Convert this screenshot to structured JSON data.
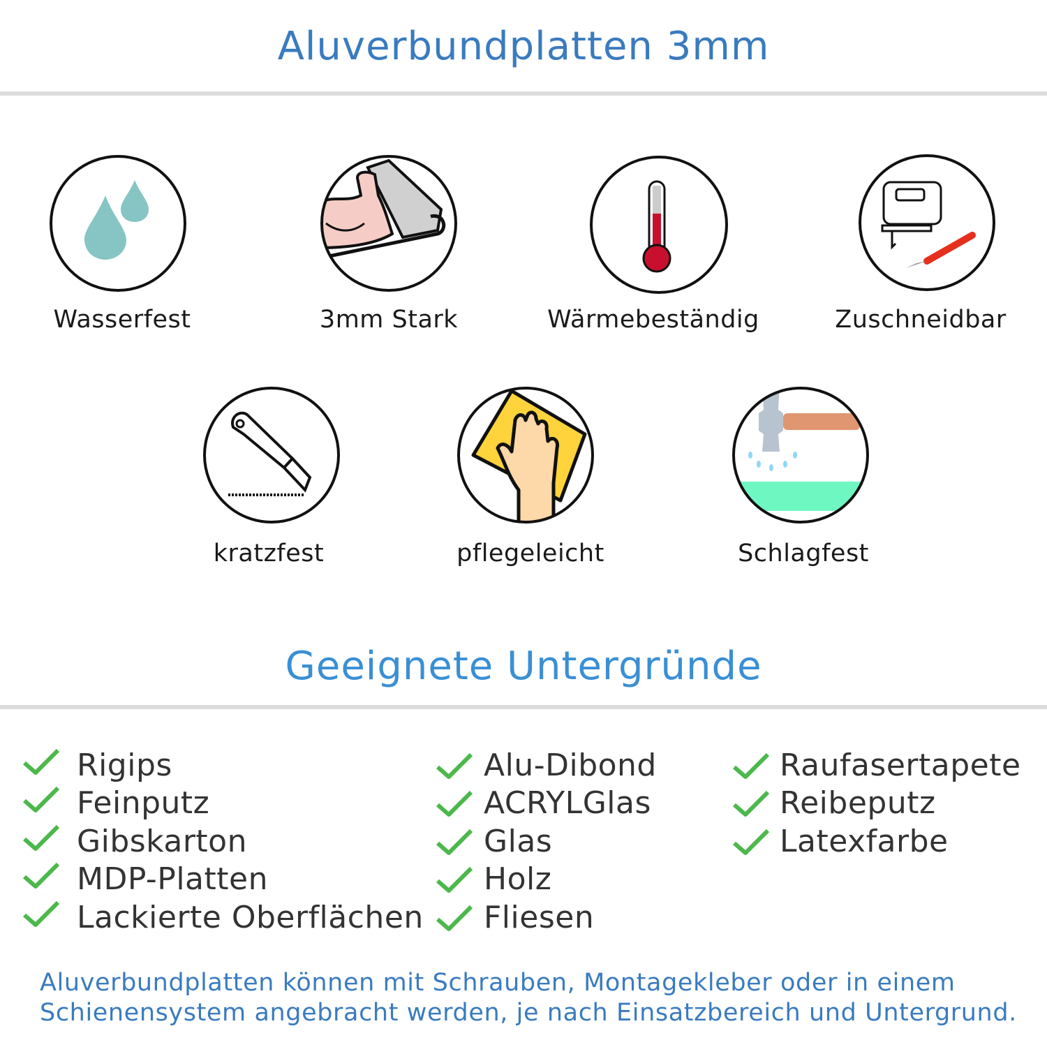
{
  "header": {
    "title": "Aluverbundplatten 3mm",
    "title_color": "#3a7bbf"
  },
  "features": [
    {
      "label": "Wasserfest",
      "icon": "water-drops-icon"
    },
    {
      "label": "3mm Stark",
      "icon": "strong-arm-icon"
    },
    {
      "label": "Wärmebeständig",
      "icon": "thermometer-icon"
    },
    {
      "label": "Zuschneidbar",
      "icon": "jigsaw-knife-icon"
    },
    {
      "label": "kratzfest",
      "icon": "cutter-knife-icon"
    },
    {
      "label": "pflegeleicht",
      "icon": "wiping-hand-icon"
    },
    {
      "label": "Schlagfest",
      "icon": "hammer-icon"
    }
  ],
  "surfaces": {
    "title": "Geeignete Untergründe",
    "title_color": "#3a8fd4",
    "check_color": "#4cb84c",
    "columns": [
      [
        "Rigips",
        "Feinputz",
        "Gibskarton",
        "MDP-Platten",
        "Lackierte Oberflächen"
      ],
      [
        "Alu-Dibond",
        "ACRYLGlas",
        "Glas",
        "Holz",
        "Fliesen"
      ],
      [
        "Raufasertapete",
        "Reibeputz",
        "Latexfarbe"
      ]
    ]
  },
  "footer": {
    "line1": "Aluverbundplatten können mit Schrauben, Montagekleber oder in einem",
    "line2": "Schienensystem angebracht werden, je nach Einsatzbereich und Untergrund."
  }
}
